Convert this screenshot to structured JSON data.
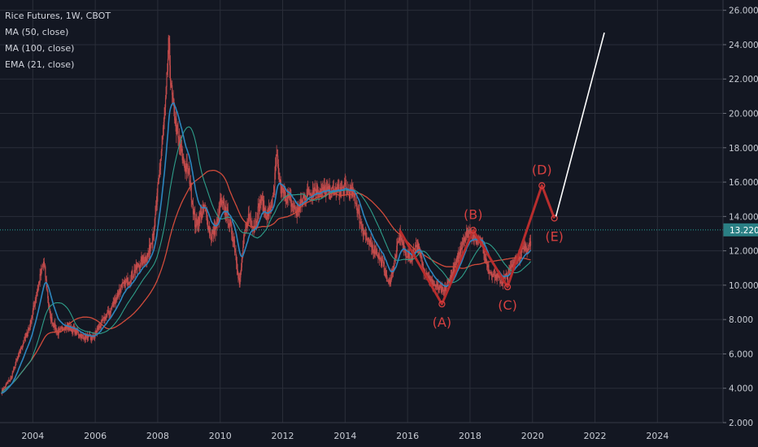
{
  "legend": {
    "symbol_line": "Rice Futures, 1W, CBOT",
    "indicators": [
      "MA (50, close)",
      "MA (100, close)",
      "EMA (21, close)"
    ]
  },
  "price_label": "13.220",
  "colors": {
    "background": "#131722",
    "grid": "#2a2e39",
    "price_line": "#26a69a",
    "price_label_bg": "#2a7f84",
    "candle": "#c64d4d",
    "ema21": "#2c86bf",
    "ma50": "#2e9e8a",
    "ma100": "#d14b3b",
    "wave": "#b82d2d",
    "wave_text": "#d64040",
    "projection": "#ffffff",
    "axis_text": "#c8ccd4"
  },
  "chart_data": {
    "type": "line",
    "title": "Rice Futures, 1W, CBOT",
    "xlim": [
      2002.95,
      2026.1
    ],
    "ylim": [
      2.0,
      26.6
    ],
    "x_ticks": [
      "2004",
      "2006",
      "2008",
      "2010",
      "2012",
      "2014",
      "2016",
      "2018",
      "2020",
      "2022",
      "2024"
    ],
    "y_ticks": [
      "2.000",
      "4.000",
      "6.000",
      "8.000",
      "10.000",
      "12.000",
      "14.000",
      "16.000",
      "18.000",
      "20.000",
      "22.000",
      "24.000",
      "26.000"
    ],
    "current_price": 13.22,
    "price_keypoints": [
      [
        2003.0,
        3.8
      ],
      [
        2003.3,
        4.6
      ],
      [
        2003.6,
        6.2
      ],
      [
        2003.9,
        7.6
      ],
      [
        2004.2,
        10.2
      ],
      [
        2004.35,
        11.4
      ],
      [
        2004.55,
        8.2
      ],
      [
        2004.8,
        7.2
      ],
      [
        2005.0,
        7.6
      ],
      [
        2005.3,
        7.4
      ],
      [
        2005.6,
        7.0
      ],
      [
        2005.9,
        6.9
      ],
      [
        2006.2,
        7.8
      ],
      [
        2006.5,
        8.6
      ],
      [
        2006.8,
        9.8
      ],
      [
        2007.1,
        10.4
      ],
      [
        2007.4,
        11.2
      ],
      [
        2007.7,
        11.8
      ],
      [
        2007.9,
        13.5
      ],
      [
        2008.1,
        17.5
      ],
      [
        2008.25,
        20.5
      ],
      [
        2008.35,
        24.0
      ],
      [
        2008.45,
        21.0
      ],
      [
        2008.65,
        18.5
      ],
      [
        2008.85,
        17.0
      ],
      [
        2009.0,
        16.5
      ],
      [
        2009.2,
        13.5
      ],
      [
        2009.5,
        14.5
      ],
      [
        2009.7,
        12.8
      ],
      [
        2009.9,
        13.5
      ],
      [
        2010.0,
        14.8
      ],
      [
        2010.2,
        14.3
      ],
      [
        2010.45,
        12.5
      ],
      [
        2010.55,
        11.0
      ],
      [
        2010.62,
        10.0
      ],
      [
        2010.75,
        12.5
      ],
      [
        2010.9,
        14.0
      ],
      [
        2011.1,
        13.5
      ],
      [
        2011.3,
        15.0
      ],
      [
        2011.5,
        14.0
      ],
      [
        2011.7,
        15.0
      ],
      [
        2011.8,
        17.5
      ],
      [
        2011.95,
        15.5
      ],
      [
        2012.2,
        15.0
      ],
      [
        2012.45,
        14.2
      ],
      [
        2012.7,
        15.2
      ],
      [
        2013.0,
        15.6
      ],
      [
        2013.5,
        15.4
      ],
      [
        2014.0,
        15.6
      ],
      [
        2014.3,
        15.2
      ],
      [
        2014.5,
        13.6
      ],
      [
        2014.75,
        12.4
      ],
      [
        2015.0,
        12.0
      ],
      [
        2015.25,
        11.0
      ],
      [
        2015.4,
        10.0
      ],
      [
        2015.6,
        11.5
      ],
      [
        2015.75,
        13.0
      ],
      [
        2015.9,
        12.0
      ],
      [
        2016.1,
        11.5
      ],
      [
        2016.3,
        12.5
      ],
      [
        2016.5,
        11.0
      ],
      [
        2016.75,
        10.2
      ],
      [
        2017.0,
        9.8
      ],
      [
        2017.15,
        9.6
      ],
      [
        2017.4,
        10.5
      ],
      [
        2017.6,
        11.5
      ],
      [
        2017.8,
        12.8
      ],
      [
        2018.0,
        13.2
      ],
      [
        2018.15,
        12.6
      ],
      [
        2018.35,
        12.8
      ],
      [
        2018.55,
        11.0
      ],
      [
        2018.8,
        10.6
      ],
      [
        2019.0,
        10.2
      ],
      [
        2019.2,
        10.6
      ],
      [
        2019.45,
        11.5
      ],
      [
        2019.7,
        12.0
      ],
      [
        2019.95,
        12.5
      ]
    ],
    "wave_labels": [
      {
        "label": "(A)",
        "x": 2017.1,
        "y": 8.9
      },
      {
        "label": "(B)",
        "x": 2018.1,
        "y": 13.2
      },
      {
        "label": "(C)",
        "x": 2019.2,
        "y": 9.9
      },
      {
        "label": "(D)",
        "x": 2020.3,
        "y": 15.8
      },
      {
        "label": "(E)",
        "x": 2020.7,
        "y": 13.9
      }
    ],
    "wave_path": [
      [
        2015.75,
        13.2
      ],
      [
        2017.1,
        8.9
      ],
      [
        2018.1,
        13.2
      ],
      [
        2019.2,
        9.9
      ],
      [
        2020.3,
        15.8
      ],
      [
        2020.7,
        13.9
      ]
    ],
    "projection_line": [
      [
        2020.75,
        14.0
      ],
      [
        2022.3,
        24.7
      ]
    ]
  }
}
